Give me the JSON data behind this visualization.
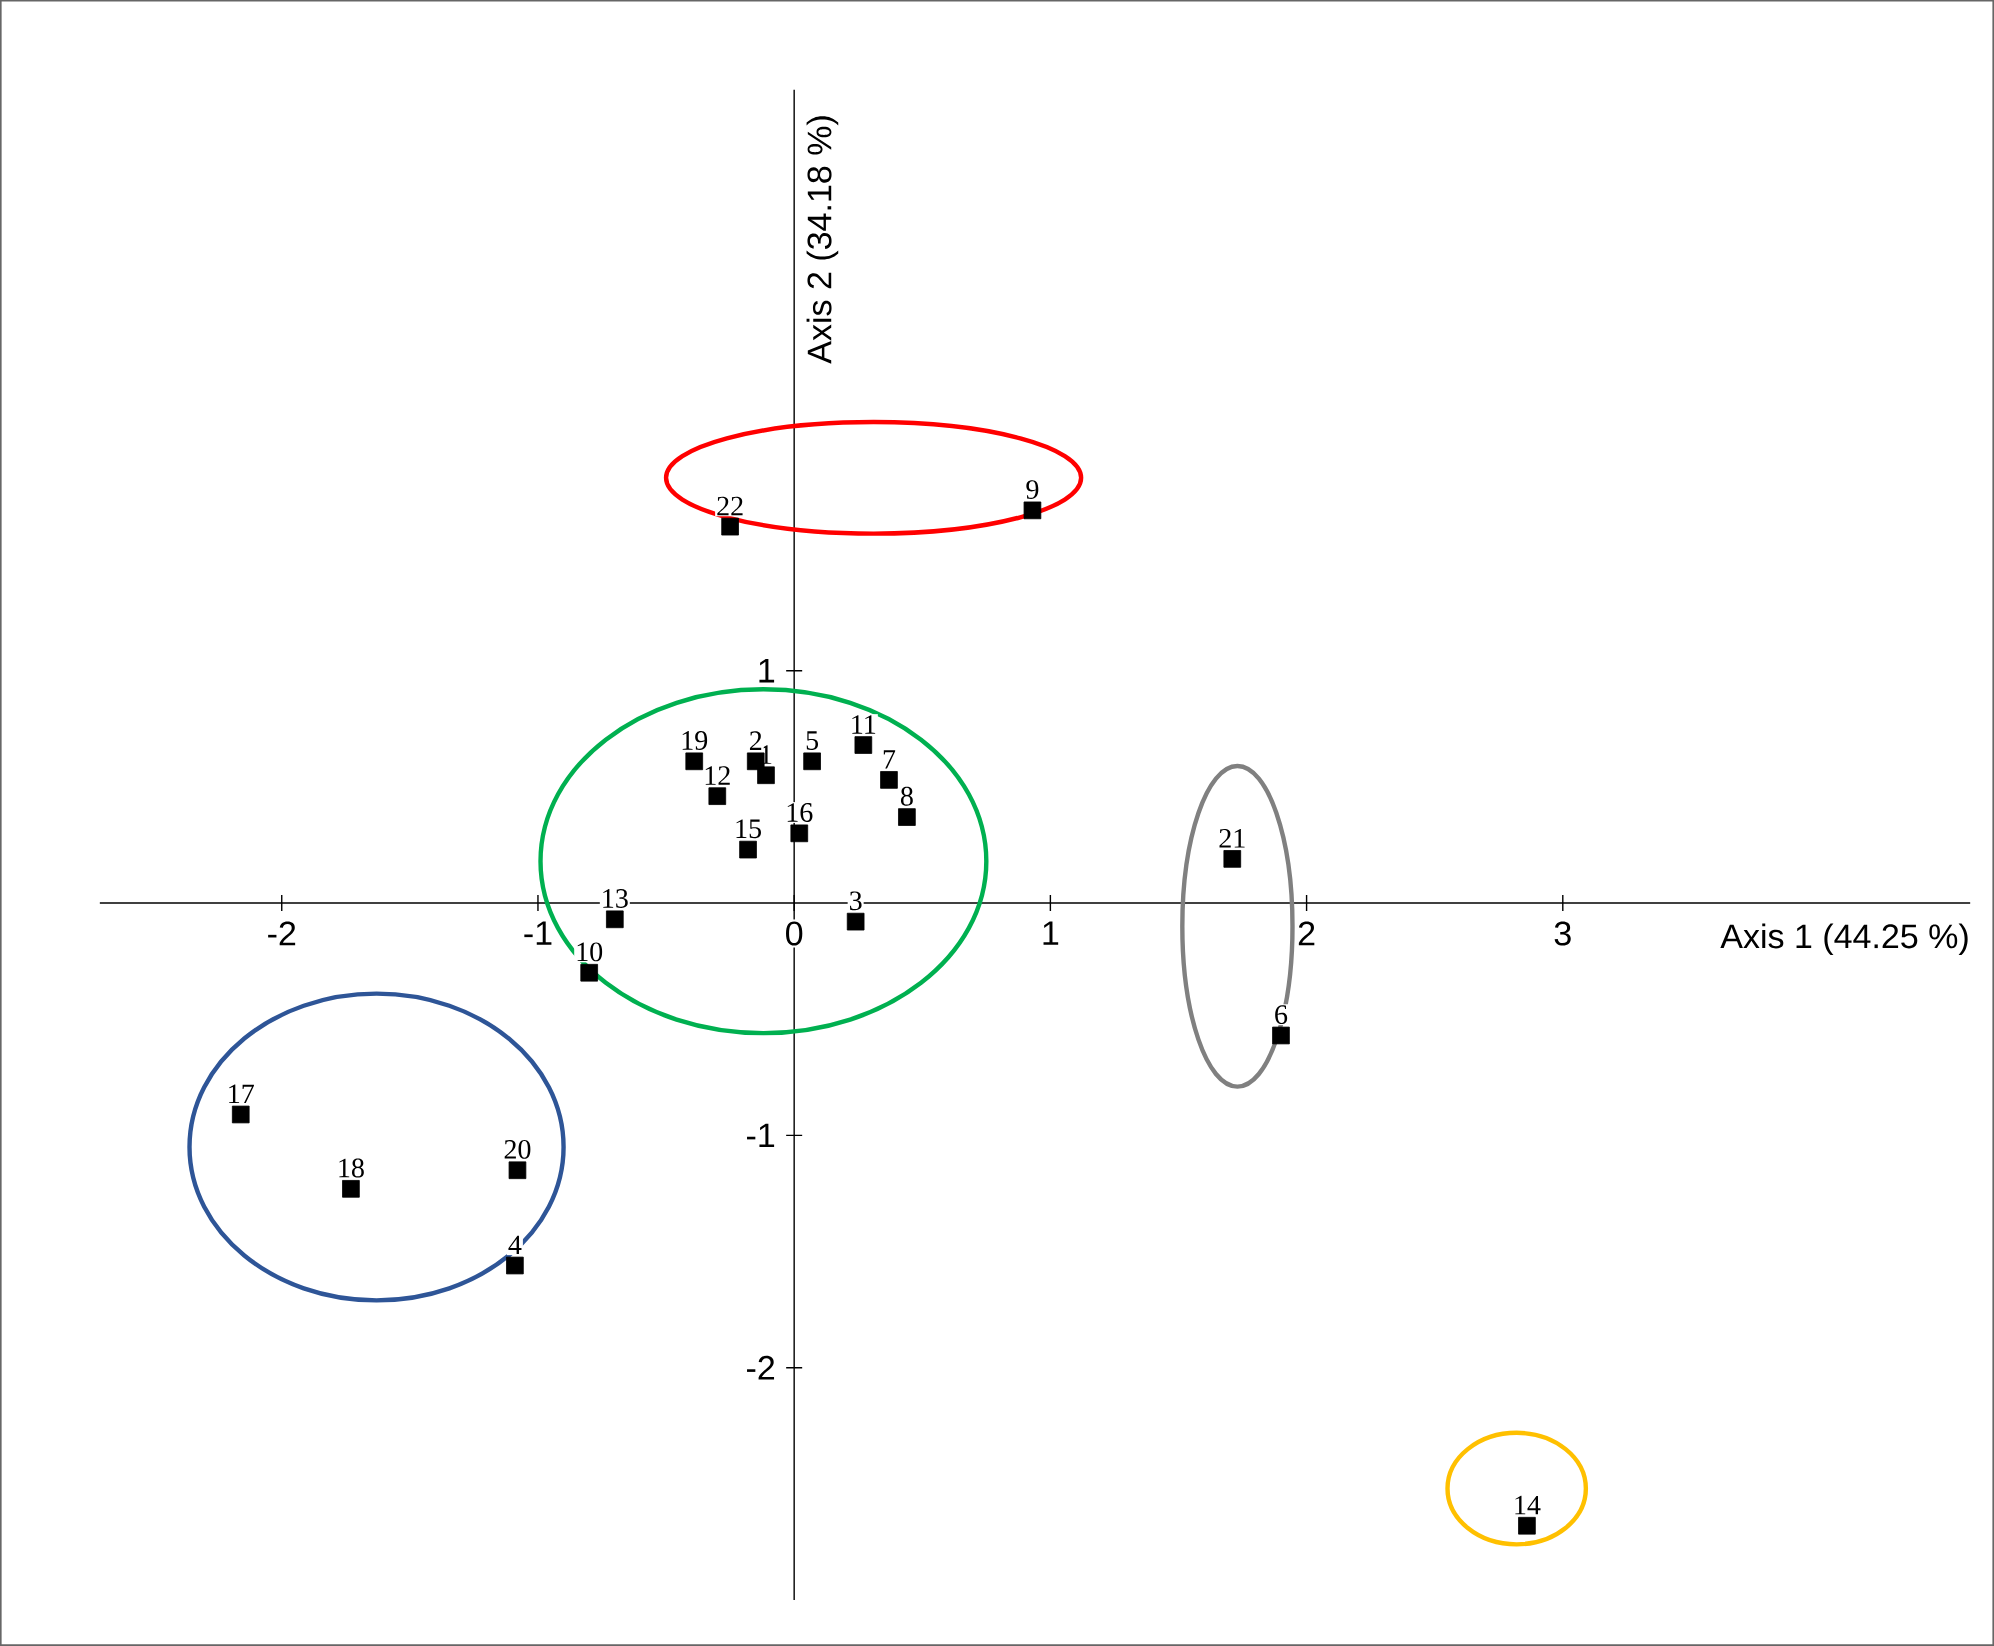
{
  "chart_data": {
    "type": "scatter",
    "xlabel": "Axis 1 (44.25 %)",
    "ylabel": "Axis 2 (34.18 %)",
    "xlim": [
      -2.71,
      4.59
    ],
    "ylim": [
      -3.0,
      3.5
    ],
    "xticks": [
      -2,
      -1,
      0,
      1,
      2,
      3
    ],
    "yticks": [
      -2,
      -1,
      1
    ],
    "marker": "square",
    "series": [
      {
        "color": "#000000",
        "x": [
          -0.11,
          -0.15,
          0.24,
          -1.09,
          0.07,
          1.9,
          0.37,
          0.44,
          0.93,
          -0.8,
          0.27,
          -0.3,
          -0.7,
          2.86,
          -0.18,
          0.02,
          -2.16,
          -1.73,
          -0.39,
          -1.08,
          1.71,
          -0.25
        ],
        "values": [
          0.55,
          0.61,
          -0.08,
          -1.56,
          0.61,
          -0.57,
          0.53,
          0.37,
          1.69,
          -0.3,
          0.68,
          0.46,
          -0.07,
          -2.68,
          0.23,
          0.3,
          -0.91,
          -1.23,
          0.61,
          -1.15,
          0.19,
          1.62
        ]
      }
    ],
    "annotations": [
      {
        "text": "1",
        "x": -0.11,
        "y": 0.55
      },
      {
        "text": "2",
        "x": -0.15,
        "y": 0.61
      },
      {
        "text": "3",
        "x": 0.24,
        "y": -0.08
      },
      {
        "text": "4",
        "x": -1.09,
        "y": -1.56
      },
      {
        "text": "5",
        "x": 0.07,
        "y": 0.61
      },
      {
        "text": "6",
        "x": 1.9,
        "y": -0.57
      },
      {
        "text": "7",
        "x": 0.37,
        "y": 0.53
      },
      {
        "text": "8",
        "x": 0.44,
        "y": 0.37
      },
      {
        "text": "9",
        "x": 0.93,
        "y": 1.69
      },
      {
        "text": "10",
        "x": -0.8,
        "y": -0.3
      },
      {
        "text": "11",
        "x": 0.27,
        "y": 0.68
      },
      {
        "text": "12",
        "x": -0.3,
        "y": 0.46
      },
      {
        "text": "13",
        "x": -0.7,
        "y": -0.07
      },
      {
        "text": "14",
        "x": 2.86,
        "y": -2.68
      },
      {
        "text": "15",
        "x": -0.18,
        "y": 0.23
      },
      {
        "text": "16",
        "x": 0.02,
        "y": 0.3
      },
      {
        "text": "17",
        "x": -2.16,
        "y": -0.91
      },
      {
        "text": "18",
        "x": -1.73,
        "y": -1.23
      },
      {
        "text": "19",
        "x": -0.39,
        "y": 0.61
      },
      {
        "text": "20",
        "x": -1.08,
        "y": -1.15
      },
      {
        "text": "21",
        "x": 1.71,
        "y": 0.19
      },
      {
        "text": "22",
        "x": -0.25,
        "y": 1.62
      }
    ]
  }
}
